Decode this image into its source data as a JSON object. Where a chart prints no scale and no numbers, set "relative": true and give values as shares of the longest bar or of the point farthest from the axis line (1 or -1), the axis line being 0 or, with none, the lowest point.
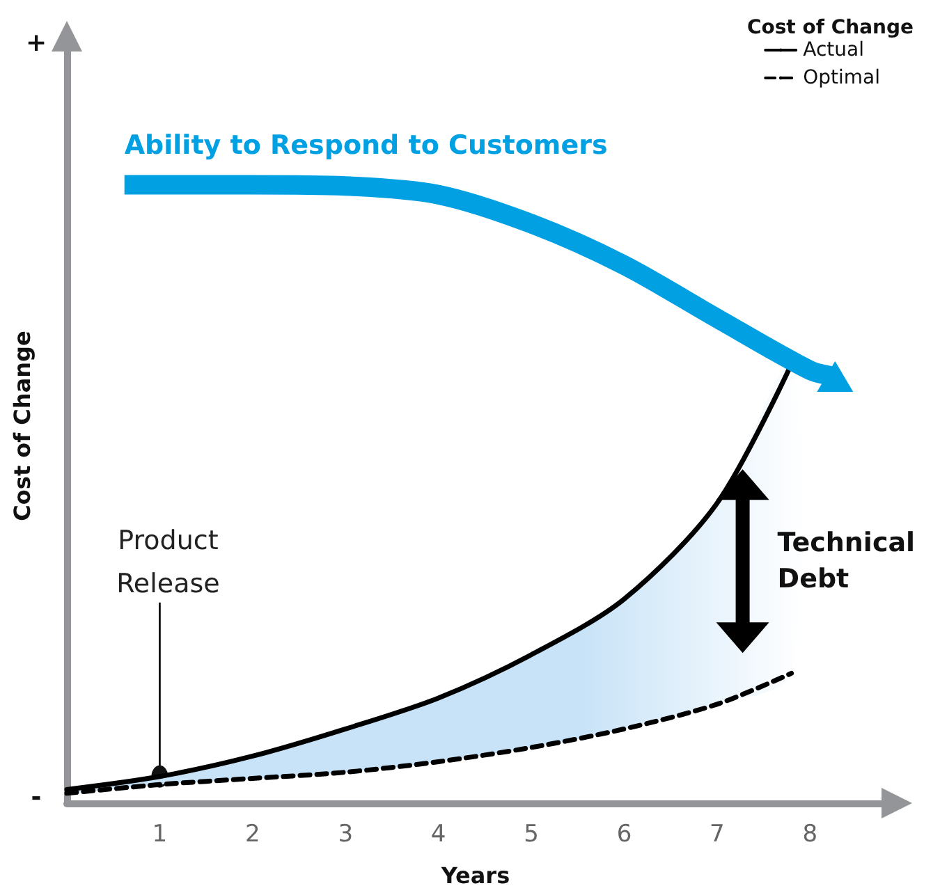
{
  "chart_data": {
    "type": "line",
    "relative": true,
    "xlabel": "Years",
    "ylabel": "Cost of Change",
    "legend_title": "Cost of Change",
    "legend": "top right",
    "marker": "none",
    "grid": false,
    "x": [
      0,
      1,
      2,
      3,
      4,
      5,
      6,
      7,
      7.8
    ],
    "xlim": [
      0,
      8.8
    ],
    "xticks": [
      1,
      2,
      3,
      4,
      5,
      6,
      7,
      8
    ],
    "series": [
      {
        "name": "Actual",
        "color": "#000000",
        "line_style": "solid",
        "values": [
          0.022,
          0.043,
          0.076,
          0.12,
          0.17,
          0.24,
          0.33,
          0.485,
          0.71
        ],
        "lower": [
          0.016,
          0.03,
          0.04,
          0.05,
          0.067,
          0.09,
          0.12,
          0.16,
          0.21
        ],
        "upper": [
          0.022,
          0.043,
          0.076,
          0.12,
          0.17,
          0.24,
          0.33,
          0.485,
          0.71
        ]
      },
      {
        "name": "Optimal",
        "color": "#000000",
        "line_style": "dashed",
        "values": [
          0.016,
          0.03,
          0.04,
          0.05,
          0.067,
          0.09,
          0.12,
          0.16,
          0.21
        ]
      },
      {
        "name": "Ability to Respond to Customers",
        "color": "#00a0e3",
        "x": [
          0.62,
          2,
          3,
          4,
          5,
          6,
          7,
          8,
          8.27
        ],
        "values": [
          1,
          1,
          0.998,
          0.984,
          0.937,
          0.87,
          0.784,
          0.7,
          0.69
        ]
      }
    ],
    "annotations": [
      "+",
      "-",
      {
        "text": "Product Release",
        "x": 1,
        "y": 0.043
      },
      "Technical Debt"
    ]
  }
}
